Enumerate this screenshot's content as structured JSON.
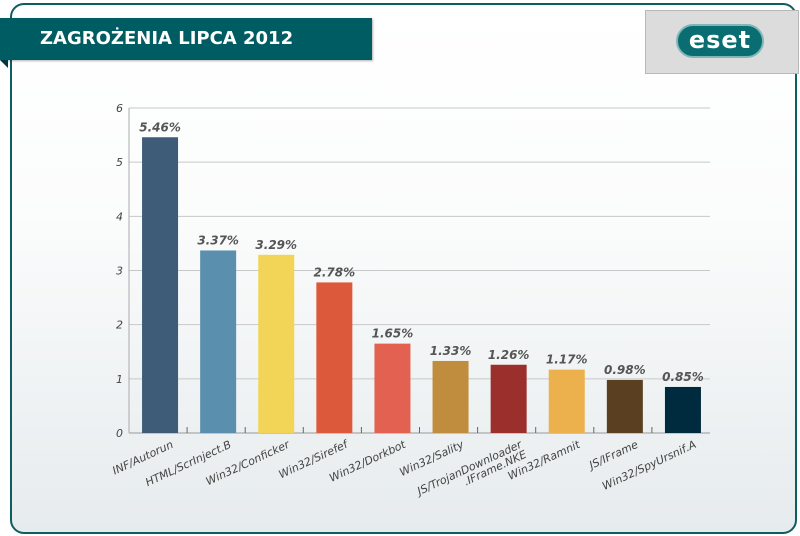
{
  "header": {
    "title": "ZAGROŻENIA LIPCA 2012",
    "logo": "eset"
  },
  "chart_data": {
    "type": "bar",
    "title": "ZAGROŻENIA LIPCA 2012",
    "categories": [
      "INF/Autorun",
      "HTML/ScrInject.B",
      "Win32/Conficker",
      "Win32/Sirefef",
      "Win32/Dorkbot",
      "Win32/Sality",
      "JS/TrojanDownloader\n.IFrame.NKE",
      "Win32/Ramnit",
      "JS/IFrame",
      "Win32/SpyUrsnif.A"
    ],
    "values": [
      5.46,
      3.37,
      3.29,
      2.78,
      1.65,
      1.33,
      1.26,
      1.17,
      0.98,
      0.85
    ],
    "labels": [
      "5.46%",
      "3.37%",
      "3.29%",
      "2.78%",
      "1.65%",
      "1.33%",
      "1.26%",
      "1.17%",
      "0.98%",
      "0.85%"
    ],
    "colors": [
      "#3e5c77",
      "#5b8fae",
      "#f2d456",
      "#dc5a3b",
      "#e26150",
      "#c08d3e",
      "#9b2f2c",
      "#ecb04d",
      "#5a4020",
      "#002b3e"
    ],
    "yticks": [
      "0",
      "1",
      "2",
      "3",
      "4",
      "5",
      "6"
    ],
    "ylim": [
      0,
      6
    ],
    "grid": true,
    "xlabel": "",
    "ylabel": ""
  }
}
